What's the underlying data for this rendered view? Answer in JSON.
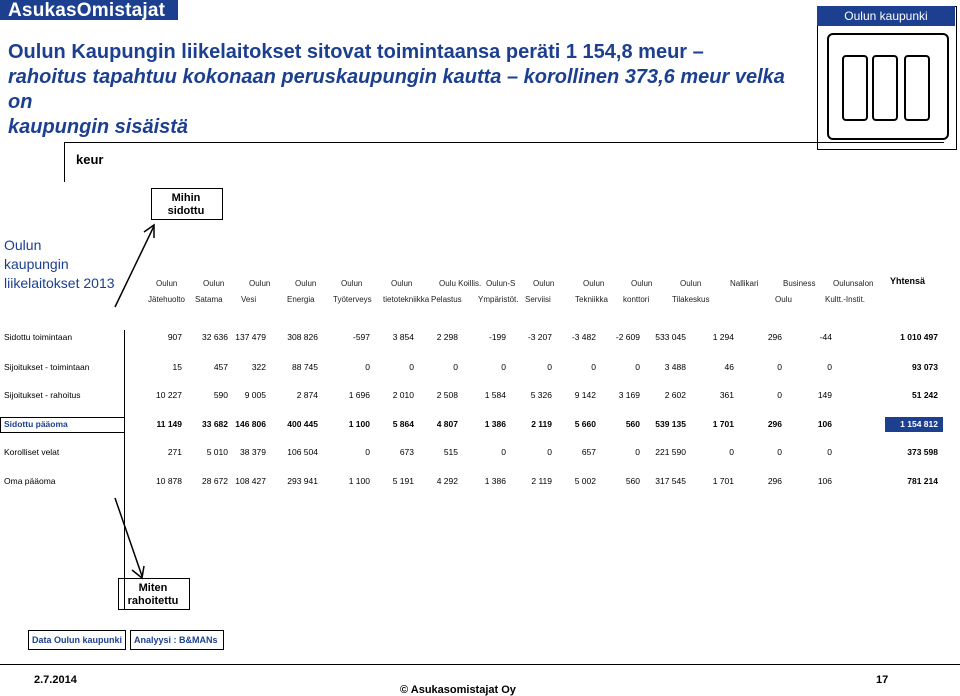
{
  "brand": "AsukasOmistajat",
  "org_chart_title": "Oulun kaupunki",
  "headline": {
    "line1": "Oulun Kaupungin liikelaitokset sitovat toimintaansa peräti 1 154,8 meur –",
    "line2": "rahoitus tapahtuu kokonaan peruskaupungin kautta – korollinen 373,6 meur velka on",
    "line3": "kaupungin sisäistä"
  },
  "unit": "keur",
  "mihin": "Mihin sidottu",
  "miten": "Miten rahoitettu",
  "left_label": [
    "Oulun",
    "kaupungin",
    "liikelaitokset 2013"
  ],
  "columns": [
    {
      "h1": "Oulun",
      "h2": "Jätehuolto"
    },
    {
      "h1": "Oulun",
      "h2": "Satama"
    },
    {
      "h1": "Oulun",
      "h2": "Vesi"
    },
    {
      "h1": "Oulun",
      "h2": "Energia"
    },
    {
      "h1": "Oulun",
      "h2": "Työterveys"
    },
    {
      "h1": "Oulun",
      "h2": "tietotekniikka"
    },
    {
      "h1": "Oulu Koillis.",
      "h2": "Pelastus"
    },
    {
      "h1": "Oulun-S",
      "h2": "Ympäristöt."
    },
    {
      "h1": "Oulun",
      "h2": "Serviisi"
    },
    {
      "h1": "Oulun",
      "h2": "Tekniikka"
    },
    {
      "h1": "Oulun",
      "h2": "konttori"
    },
    {
      "h1": "Oulun",
      "h2": "Tilakeskus"
    },
    {
      "h1": "Nallikari",
      "h2": ""
    },
    {
      "h1": "Business",
      "h2": "Oulu"
    },
    {
      "h1": "Oulunsalon",
      "h2": "Kultt.-Instit."
    }
  ],
  "total_header": "Yhtensä",
  "rows": [
    {
      "label": "Sidottu toimintaan",
      "values": [
        "907",
        "32 636",
        "137 479",
        "308 826",
        "-597",
        "3 854",
        "2 298",
        "-199",
        "-3 207",
        "-3 482",
        "-2 609",
        "533 045",
        "1 294",
        "296",
        "-44"
      ],
      "total": "1 010 497"
    },
    {
      "label": "Sijoitukset - toimintaan",
      "values": [
        "15",
        "457",
        "322",
        "88 745",
        "0",
        "0",
        "0",
        "0",
        "0",
        "0",
        "0",
        "3 488",
        "46",
        "0",
        "0"
      ],
      "total": "93 073"
    },
    {
      "label": "Sijoitukset - rahoitus",
      "values": [
        "10 227",
        "590",
        "9 005",
        "2 874",
        "1 696",
        "2 010",
        "2 508",
        "1 584",
        "5 326",
        "9 142",
        "3 169",
        "2 602",
        "361",
        "0",
        "149"
      ],
      "total": "51 242"
    },
    {
      "label": "Sidottu pääoma",
      "values": [
        "11 149",
        "33 682",
        "146 806",
        "400 445",
        "1 100",
        "5 864",
        "4 807",
        "1 386",
        "2 119",
        "5 660",
        "560",
        "539 135",
        "1 701",
        "296",
        "106"
      ],
      "total": "1 154 812",
      "bold": true
    },
    {
      "label": "Korolliset velat",
      "values": [
        "271",
        "5 010",
        "38 379",
        "106 504",
        "0",
        "673",
        "515",
        "0",
        "0",
        "657",
        "0",
        "221 590",
        "0",
        "0",
        "0"
      ],
      "total": "373 598"
    },
    {
      "label": "Oma pääoma",
      "values": [
        "10 878",
        "28 672",
        "108 427",
        "293 941",
        "1 100",
        "5 191",
        "4 292",
        "1 386",
        "2 119",
        "5 002",
        "560",
        "317 545",
        "1 701",
        "296",
        "106"
      ],
      "total": "781 214"
    }
  ],
  "data_source": "Data Oulun kaupunki",
  "analysis": "Analyysi : B&MANs",
  "footer": {
    "date": "2.7.2014",
    "copyright": "© Asukasomistajat Oy",
    "page": "17"
  }
}
